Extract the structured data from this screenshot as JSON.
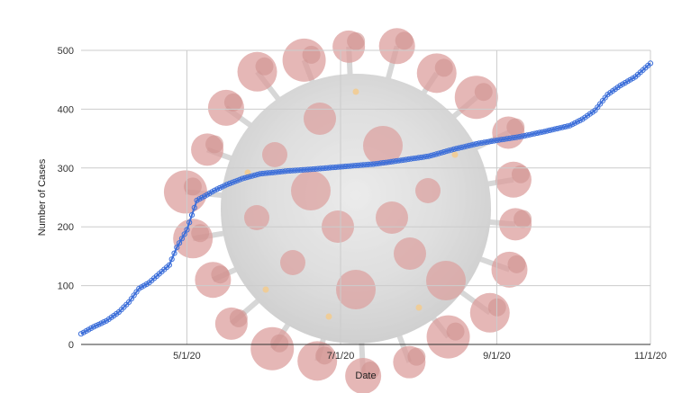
{
  "chart_data": {
    "type": "line",
    "title": "",
    "xlabel": "Date",
    "ylabel": "Number of Cases",
    "xlim": [
      "2020-03-20",
      "2020-11-01"
    ],
    "ylim": [
      0,
      500
    ],
    "x_ticks": [
      {
        "date": "2020-05-01",
        "label": "5/1/20"
      },
      {
        "date": "2020-07-01",
        "label": "7/1/20"
      },
      {
        "date": "2020-09-01",
        "label": "9/1/20"
      },
      {
        "date": "2020-11-01",
        "label": "11/1/20"
      }
    ],
    "y_ticks": [
      0,
      100,
      200,
      300,
      400,
      500
    ],
    "grid": true,
    "background_image": "coronavirus-particle",
    "series": [
      {
        "color": "#3d6fd9",
        "marker": "open-circle",
        "anchors": [
          {
            "x": "2020-03-20",
            "y": 18
          },
          {
            "x": "2020-03-25",
            "y": 30
          },
          {
            "x": "2020-03-30",
            "y": 40
          },
          {
            "x": "2020-04-04",
            "y": 55
          },
          {
            "x": "2020-04-08",
            "y": 72
          },
          {
            "x": "2020-04-12",
            "y": 95
          },
          {
            "x": "2020-04-16",
            "y": 105
          },
          {
            "x": "2020-04-20",
            "y": 120
          },
          {
            "x": "2020-04-24",
            "y": 135
          },
          {
            "x": "2020-04-27",
            "y": 165
          },
          {
            "x": "2020-04-29",
            "y": 180
          },
          {
            "x": "2020-05-01",
            "y": 195
          },
          {
            "x": "2020-05-03",
            "y": 220
          },
          {
            "x": "2020-05-05",
            "y": 245
          },
          {
            "x": "2020-05-08",
            "y": 252
          },
          {
            "x": "2020-05-12",
            "y": 262
          },
          {
            "x": "2020-05-17",
            "y": 272
          },
          {
            "x": "2020-05-23",
            "y": 282
          },
          {
            "x": "2020-05-30",
            "y": 290
          },
          {
            "x": "2020-06-10",
            "y": 295
          },
          {
            "x": "2020-06-20",
            "y": 298
          },
          {
            "x": "2020-07-01",
            "y": 302
          },
          {
            "x": "2020-07-15",
            "y": 307
          },
          {
            "x": "2020-07-25",
            "y": 313
          },
          {
            "x": "2020-08-05",
            "y": 320
          },
          {
            "x": "2020-08-15",
            "y": 332
          },
          {
            "x": "2020-08-25",
            "y": 342
          },
          {
            "x": "2020-09-01",
            "y": 347
          },
          {
            "x": "2020-09-10",
            "y": 353
          },
          {
            "x": "2020-09-20",
            "y": 362
          },
          {
            "x": "2020-09-30",
            "y": 372
          },
          {
            "x": "2020-10-05",
            "y": 383
          },
          {
            "x": "2020-10-10",
            "y": 398
          },
          {
            "x": "2020-10-15",
            "y": 425
          },
          {
            "x": "2020-10-20",
            "y": 440
          },
          {
            "x": "2020-10-26",
            "y": 455
          },
          {
            "x": "2020-11-01",
            "y": 478
          }
        ]
      }
    ]
  }
}
